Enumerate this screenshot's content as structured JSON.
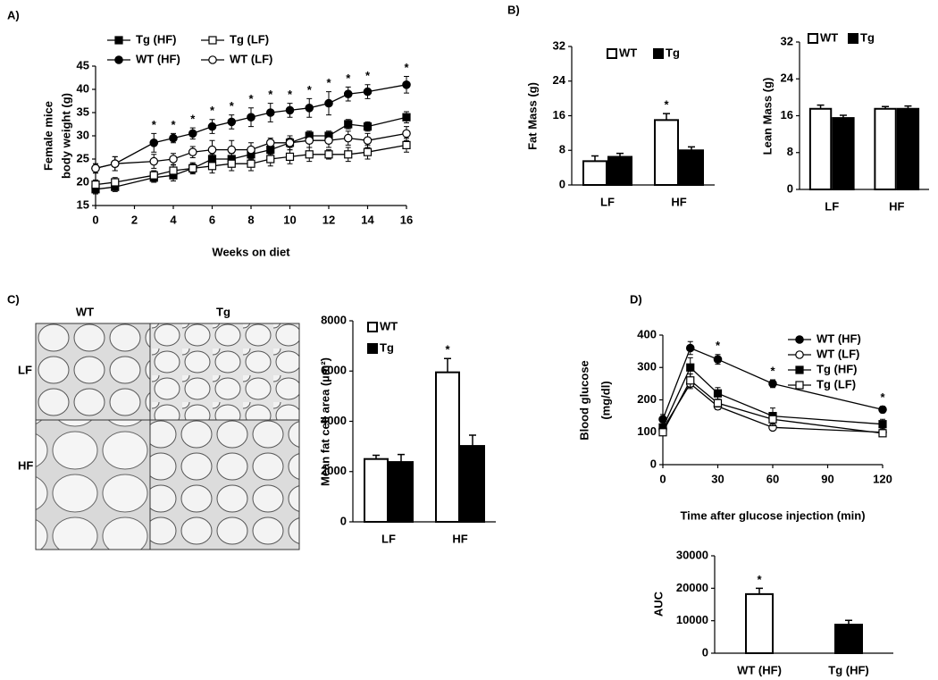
{
  "micrographs": {
    "label": "C)",
    "columns": [
      "WT",
      "Tg"
    ],
    "rows": [
      "LF",
      "HF"
    ]
  },
  "chart_data": [
    {
      "type": "line",
      "label": "A)",
      "xlabel": "Weeks on diet",
      "ylabel": [
        "Female mice",
        "body weight (g)"
      ],
      "x": [
        0,
        1,
        3,
        4,
        5,
        6,
        7,
        8,
        9,
        10,
        11,
        12,
        13,
        14,
        16
      ],
      "xlim": [
        0,
        16
      ],
      "xticks": [
        0,
        2,
        4,
        6,
        8,
        10,
        12,
        14,
        16
      ],
      "ylim": [
        15,
        45
      ],
      "yticks": [
        15,
        20,
        25,
        30,
        35,
        40,
        45
      ],
      "legend": "top",
      "series": [
        {
          "name": "Tg (HF)",
          "color": "#000000",
          "marker": "square",
          "marker_fill": "#000000",
          "values": [
            18.5,
            19,
            21,
            21.5,
            23,
            25,
            25,
            26,
            27,
            28.5,
            30,
            30,
            32.5,
            32,
            34
          ],
          "errors": [
            1,
            1,
            1,
            1.2,
            1,
            1,
            1.2,
            1,
            1,
            1,
            1,
            1,
            1,
            1,
            1.2
          ]
        },
        {
          "name": "Tg (LF)",
          "color": "#000000",
          "marker": "square",
          "marker_fill": "#ffffff",
          "values": [
            19.5,
            20,
            21.5,
            22.5,
            23,
            23.5,
            24,
            24,
            25,
            25.5,
            26,
            26,
            26,
            26.5,
            28
          ],
          "errors": [
            1,
            1,
            1,
            1.2,
            1.2,
            1.5,
            1.5,
            1.5,
            1.5,
            1.5,
            1.5,
            1,
            1.5,
            1.5,
            1.5
          ]
        },
        {
          "name": "WT (HF)",
          "color": "#000000",
          "marker": "circle",
          "marker_fill": "#000000",
          "values": [
            23,
            24,
            28.5,
            29.5,
            30.5,
            32,
            33,
            34,
            35,
            35.5,
            36,
            37,
            39,
            39.5,
            41
          ],
          "errors": [
            1,
            1.5,
            2,
            1,
            1.2,
            1.5,
            1.5,
            2,
            2,
            1.5,
            2,
            2.5,
            1.5,
            1.5,
            1.8
          ]
        },
        {
          "name": "WT (LF)",
          "color": "#000000",
          "marker": "circle",
          "marker_fill": "#ffffff",
          "values": [
            23,
            24,
            24.5,
            25,
            26.5,
            27,
            27,
            27,
            28.5,
            28.5,
            29,
            29,
            29.5,
            29,
            30.5
          ],
          "errors": [
            1,
            1.5,
            1.5,
            1.2,
            1.2,
            2,
            2,
            1.5,
            1,
            1.5,
            1.5,
            1.5,
            1.5,
            1.5,
            1.5
          ]
        }
      ],
      "significance": {
        "text": "*",
        "series": "WT (HF)",
        "x": [
          3,
          4,
          5,
          6,
          7,
          8,
          9,
          10,
          11,
          12,
          13,
          14,
          16
        ]
      }
    },
    {
      "type": "bar",
      "label": "B)",
      "ylabel": "Fat Mass (g)",
      "categories": [
        "LF",
        "HF"
      ],
      "ylim": [
        0,
        32
      ],
      "yticks": [
        0,
        8,
        16,
        24,
        32
      ],
      "legend": "top",
      "edgecolor": "#000000",
      "series": [
        {
          "name": "WT",
          "color": "#ffffff",
          "values": [
            5.5,
            15
          ],
          "errors": [
            1.2,
            1.5
          ]
        },
        {
          "name": "Tg",
          "color": "#000000",
          "values": [
            6.5,
            8
          ],
          "errors": [
            0.8,
            0.8
          ]
        }
      ],
      "significance": {
        "text": "*",
        "series": "WT",
        "categories": [
          "HF"
        ]
      }
    },
    {
      "type": "bar",
      "ylabel": "Lean Mass (g)",
      "categories": [
        "LF",
        "HF"
      ],
      "ylim": [
        0,
        32
      ],
      "yticks": [
        0,
        8,
        16,
        24,
        32
      ],
      "legend": "top",
      "edgecolor": "#000000",
      "series": [
        {
          "name": "WT",
          "color": "#ffffff",
          "values": [
            17.5,
            17.5
          ],
          "errors": [
            0.8,
            0.5
          ]
        },
        {
          "name": "Tg",
          "color": "#000000",
          "values": [
            15.5,
            17.5
          ],
          "errors": [
            0.6,
            0.6
          ]
        }
      ]
    },
    {
      "type": "bar",
      "ylabel": "Mean fat cell area (µm²)",
      "categories": [
        "LF",
        "HF"
      ],
      "ylim": [
        0,
        8000
      ],
      "yticks": [
        0,
        2000,
        4000,
        6000,
        8000
      ],
      "legend": "top-left",
      "edgecolor": "#000000",
      "series": [
        {
          "name": "WT",
          "color": "#ffffff",
          "values": [
            2500,
            5950
          ],
          "errors": [
            150,
            550
          ]
        },
        {
          "name": "Tg",
          "color": "#000000",
          "values": [
            2380,
            3020
          ],
          "errors": [
            300,
            430
          ]
        }
      ],
      "significance": {
        "text": "*",
        "series": "WT",
        "categories": [
          "HF"
        ]
      }
    },
    {
      "type": "line",
      "label": "D)",
      "xlabel": "Time after glucose injection (min)",
      "ylabel": [
        "Blood glucose",
        "(mg/dl)"
      ],
      "x": [
        0,
        15,
        30,
        60,
        120
      ],
      "xlim": [
        0,
        120
      ],
      "xticks": [
        0,
        30,
        60,
        90,
        120
      ],
      "ylim": [
        0,
        400
      ],
      "yticks": [
        0,
        100,
        200,
        300,
        400
      ],
      "legend": "top-right",
      "series": [
        {
          "name": "WT (HF)",
          "color": "#000000",
          "marker": "circle",
          "marker_fill": "#000000",
          "values": [
            140,
            360,
            325,
            250,
            170
          ],
          "errors": [
            15,
            20,
            15,
            12,
            10
          ]
        },
        {
          "name": "WT (LF)",
          "color": "#000000",
          "marker": "circle",
          "marker_fill": "#ffffff",
          "values": [
            110,
            250,
            180,
            115,
            100
          ],
          "errors": [
            10,
            15,
            10,
            8,
            8
          ]
        },
        {
          "name": "Tg (HF)",
          "color": "#000000",
          "marker": "square",
          "marker_fill": "#000000",
          "values": [
            115,
            300,
            220,
            150,
            125
          ],
          "errors": [
            10,
            30,
            18,
            25,
            15
          ]
        },
        {
          "name": "Tg (LF)",
          "color": "#000000",
          "marker": "square",
          "marker_fill": "#ffffff",
          "values": [
            100,
            260,
            190,
            140,
            97
          ],
          "errors": [
            10,
            20,
            12,
            20,
            10
          ]
        }
      ],
      "significance": {
        "text": "*",
        "series": "WT (HF)",
        "x": [
          30,
          60,
          120
        ]
      }
    },
    {
      "type": "bar",
      "ylabel": "AUC",
      "categories": [
        "WT (HF)",
        "Tg (HF)"
      ],
      "ylim": [
        0,
        30000
      ],
      "yticks": [
        0,
        10000,
        20000,
        30000
      ],
      "edgecolor": "#000000",
      "grouped": false,
      "series": [
        {
          "colors": [
            "#ffffff",
            "#000000"
          ],
          "values": [
            18200,
            8800
          ],
          "errors": [
            1800,
            1300
          ]
        }
      ],
      "significance": {
        "text": "*",
        "categories": [
          "WT (HF)"
        ]
      }
    }
  ]
}
